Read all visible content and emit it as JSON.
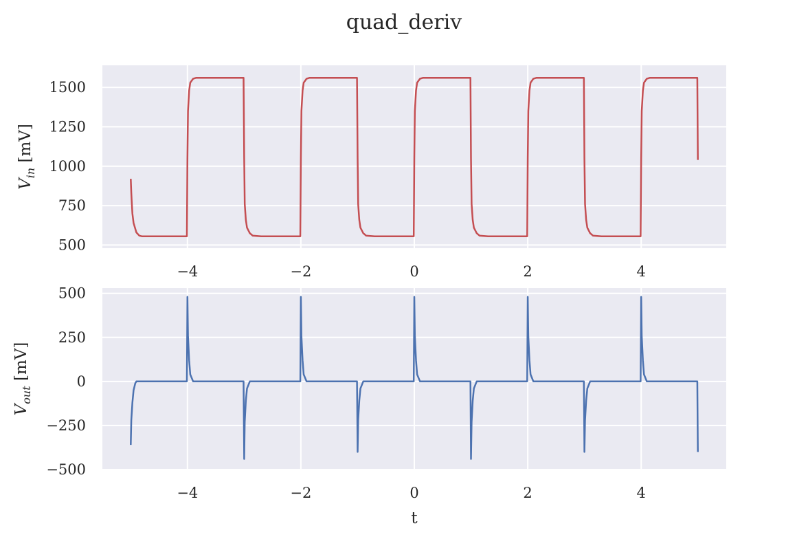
{
  "chart_data": {
    "type": "line",
    "title": "quad_deriv",
    "xlabel": "t",
    "subplots": [
      {
        "name": "top",
        "ylabel_main": "V",
        "ylabel_sub": "in",
        "ylabel_unit": "[mV]",
        "xlim": [
          -5.5,
          5.5
        ],
        "ylim": [
          480,
          1640
        ],
        "yticks": [
          500,
          750,
          1000,
          1250,
          1500
        ],
        "ytick_labels": [
          "500",
          "750",
          "1000",
          "1250",
          "1500"
        ],
        "xticks": [
          -4,
          -2,
          0,
          2,
          4
        ],
        "xtick_labels": [
          "−4",
          "−2",
          "0",
          "2",
          "4"
        ],
        "color": "#c44e52",
        "series": [
          {
            "x": [
              -5.0,
              -4.99,
              -4.98,
              -4.97,
              -4.95,
              -4.9,
              -4.85,
              -4.8,
              -4.7,
              -4.6,
              -4.5,
              -4.4,
              -4.3,
              -4.2,
              -4.1,
              -4.01,
              -4.0,
              -3.99,
              -3.97,
              -3.95,
              -3.9,
              -3.85,
              -3.7,
              -3.55,
              -3.4,
              -3.2,
              -3.01,
              -3.0,
              -2.99,
              -2.97,
              -2.95,
              -2.9,
              -2.85,
              -2.7,
              -2.5,
              -2.3,
              -2.1,
              -2.01,
              -2.0,
              -1.99,
              -1.97,
              -1.95,
              -1.9,
              -1.85,
              -1.7,
              -1.5,
              -1.3,
              -1.1,
              -1.01,
              -1.0,
              -0.99,
              -0.97,
              -0.95,
              -0.9,
              -0.85,
              -0.7,
              -0.5,
              -0.3,
              -0.1,
              -0.01,
              0.0,
              0.01,
              0.03,
              0.05,
              0.1,
              0.15,
              0.3,
              0.5,
              0.7,
              0.9,
              0.99,
              1.0,
              1.01,
              1.03,
              1.05,
              1.1,
              1.15,
              1.3,
              1.5,
              1.7,
              1.9,
              1.99,
              2.0,
              2.01,
              2.03,
              2.05,
              2.1,
              2.15,
              2.3,
              2.5,
              2.7,
              2.9,
              2.99,
              3.0,
              3.01,
              3.03,
              3.05,
              3.1,
              3.15,
              3.3,
              3.5,
              3.7,
              3.9,
              3.99,
              4.0,
              4.01,
              4.03,
              4.05,
              4.1,
              4.15,
              4.3,
              4.5,
              4.7,
              4.9,
              4.99,
              5.0
            ],
            "y": [
              920,
              830,
              760,
              700,
              640,
              580,
              560,
              555,
              555,
              555,
              555,
              555,
              555,
              555,
              555,
              555,
              1050,
              1350,
              1480,
              1530,
              1555,
              1560,
              1560,
              1560,
              1560,
              1560,
              1560,
              1050,
              760,
              660,
              610,
              575,
              560,
              555,
              555,
              555,
              555,
              555,
              1050,
              1350,
              1480,
              1530,
              1555,
              1560,
              1560,
              1560,
              1560,
              1560,
              1560,
              1050,
              760,
              660,
              610,
              575,
              560,
              555,
              555,
              555,
              555,
              555,
              1050,
              1350,
              1480,
              1530,
              1555,
              1560,
              1560,
              1560,
              1560,
              1560,
              1560,
              1050,
              760,
              660,
              610,
              575,
              560,
              555,
              555,
              555,
              555,
              555,
              1050,
              1350,
              1480,
              1530,
              1555,
              1560,
              1560,
              1560,
              1560,
              1560,
              1560,
              1050,
              760,
              660,
              610,
              575,
              560,
              555,
              555,
              555,
              555,
              555,
              1050,
              1350,
              1480,
              1530,
              1555,
              1560,
              1560,
              1560,
              1560,
              1560,
              1560,
              1040
            ]
          }
        ]
      },
      {
        "name": "bottom",
        "ylabel_main": "V",
        "ylabel_sub": "out",
        "ylabel_unit": "[mV]",
        "xlim": [
          -5.5,
          5.5
        ],
        "ylim": [
          -500,
          530
        ],
        "yticks": [
          -500,
          -250,
          0,
          250,
          500
        ],
        "ytick_labels": [
          "−500",
          "−250",
          "0",
          "250",
          "500"
        ],
        "xticks": [
          -4,
          -2,
          0,
          2,
          4
        ],
        "xtick_labels": [
          "−4",
          "−2",
          "0",
          "2",
          "4"
        ],
        "color": "#4c72b0",
        "series": [
          {
            "x": [
              -5.0,
              -4.99,
              -4.97,
              -4.95,
              -4.92,
              -4.9,
              -4.5,
              -4.01,
              -4.0,
              -3.99,
              -3.97,
              -3.95,
              -3.9,
              -3.5,
              -3.01,
              -3.0,
              -2.99,
              -2.97,
              -2.95,
              -2.9,
              -2.5,
              -2.01,
              -2.0,
              -1.99,
              -1.97,
              -1.95,
              -1.9,
              -1.5,
              -1.01,
              -1.0,
              -0.99,
              -0.97,
              -0.95,
              -0.9,
              -0.5,
              -0.01,
              0.0,
              0.01,
              0.03,
              0.05,
              0.1,
              0.5,
              0.99,
              1.0,
              1.01,
              1.03,
              1.05,
              1.1,
              1.5,
              1.99,
              2.0,
              2.01,
              2.03,
              2.05,
              2.1,
              2.5,
              2.99,
              3.0,
              3.01,
              3.03,
              3.05,
              3.1,
              3.5,
              3.99,
              4.0,
              4.01,
              4.03,
              4.05,
              4.1,
              4.5,
              4.99,
              5.0
            ],
            "y": [
              -360,
              -220,
              -120,
              -50,
              -10,
              0,
              0,
              0,
              480,
              260,
              120,
              40,
              0,
              0,
              0,
              -440,
              -230,
              -110,
              -40,
              0,
              0,
              0,
              480,
              260,
              120,
              40,
              0,
              0,
              0,
              -400,
              -220,
              -110,
              -40,
              0,
              0,
              0,
              480,
              260,
              120,
              40,
              0,
              0,
              0,
              -440,
              -230,
              -110,
              -40,
              0,
              0,
              0,
              480,
              260,
              120,
              40,
              0,
              0,
              0,
              -400,
              -220,
              -110,
              -40,
              0,
              0,
              0,
              480,
              260,
              120,
              40,
              0,
              0,
              0,
              -400
            ]
          }
        ]
      }
    ]
  }
}
